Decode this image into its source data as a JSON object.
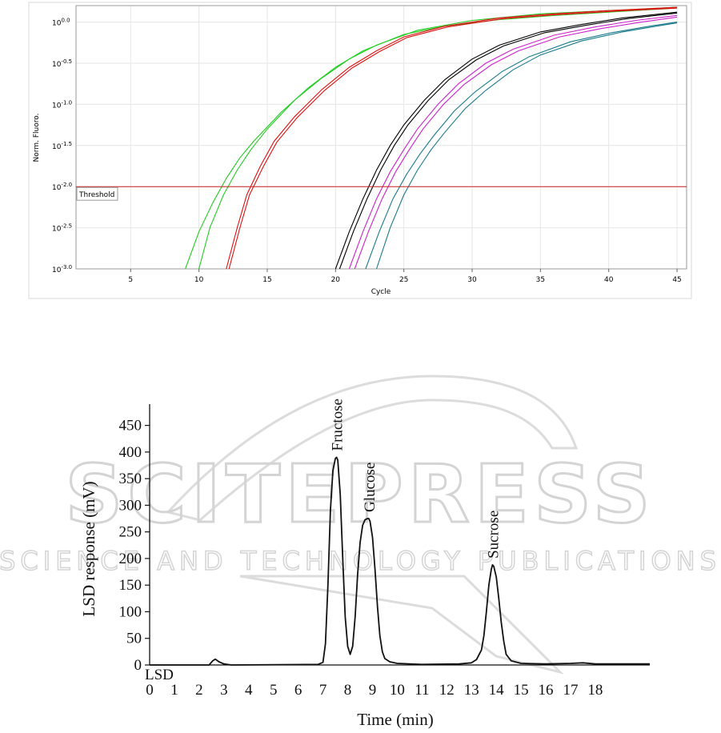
{
  "chart_data": [
    {
      "type": "line",
      "ylabel": "Norm. Fluoro.",
      "xlabel": "Cycle",
      "y_scale": "log",
      "x_ticks": [
        5,
        10,
        15,
        20,
        25,
        30,
        35,
        40,
        45
      ],
      "y_ticks": [
        "0.0",
        "-0.5",
        "-1.0",
        "-1.5",
        "-2.0",
        "-2.5",
        "-3.0"
      ],
      "y_tick_base": "10",
      "xlim": [
        1,
        45.7
      ],
      "ylim_log10": [
        -3.0,
        0.2
      ],
      "grid": true,
      "threshold": {
        "label": "Threshold",
        "value_log10": -2.0,
        "color": "#cc2222"
      },
      "series": [
        {
          "color": "#22cc22",
          "x": [
            9.0,
            10.0,
            11.0,
            12.0,
            13.0,
            14.0,
            16.0,
            18.0,
            20.0,
            22.0,
            25.0,
            28.0,
            32.0,
            36.0,
            40.0,
            45.0
          ],
          "y_log10": [
            -3.0,
            -2.55,
            -2.2,
            -1.9,
            -1.65,
            -1.45,
            -1.1,
            -0.8,
            -0.55,
            -0.35,
            -0.15,
            -0.05,
            0.03,
            0.08,
            0.12,
            0.17
          ]
        },
        {
          "color": "#22cc22",
          "x": [
            10.0,
            10.8,
            11.8,
            12.8,
            13.8,
            15.0,
            17.0,
            19.0,
            21.0,
            23.0,
            26.0,
            30.0,
            35.0,
            40.0,
            45.0
          ],
          "y_log10": [
            -3.0,
            -2.5,
            -2.1,
            -1.8,
            -1.55,
            -1.3,
            -0.95,
            -0.68,
            -0.45,
            -0.28,
            -0.1,
            0.02,
            0.1,
            0.14,
            0.18
          ]
        },
        {
          "color": "#dd1111",
          "x": [
            12.0,
            12.8,
            13.5,
            14.5,
            15.5,
            17.0,
            19.0,
            21.0,
            23.0,
            25.0,
            28.0,
            32.0,
            36.0,
            40.0,
            45.0
          ],
          "y_log10": [
            -3.0,
            -2.5,
            -2.1,
            -1.75,
            -1.45,
            -1.15,
            -0.82,
            -0.55,
            -0.35,
            -0.18,
            -0.05,
            0.05,
            0.1,
            0.14,
            0.18
          ]
        },
        {
          "color": "#dd1111",
          "x": [
            12.2,
            13.0,
            13.7,
            14.7,
            15.7,
            17.2,
            19.2,
            21.2,
            23.2,
            25.2,
            28.2,
            32.2,
            36.2,
            40.2,
            45.0
          ],
          "y_log10": [
            -3.0,
            -2.5,
            -2.1,
            -1.76,
            -1.46,
            -1.16,
            -0.83,
            -0.56,
            -0.36,
            -0.19,
            -0.06,
            0.04,
            0.09,
            0.13,
            0.17
          ]
        },
        {
          "color": "#000000",
          "x": [
            20.0,
            21.0,
            22.0,
            23.0,
            24.0,
            25.0,
            26.5,
            28.0,
            30.0,
            32.0,
            35.0,
            38.0,
            41.0,
            45.0
          ],
          "y_log10": [
            -3.0,
            -2.55,
            -2.15,
            -1.8,
            -1.5,
            -1.25,
            -0.95,
            -0.7,
            -0.45,
            -0.28,
            -0.12,
            -0.03,
            0.05,
            0.12
          ]
        },
        {
          "color": "#000000",
          "x": [
            20.3,
            21.3,
            22.3,
            23.3,
            24.3,
            25.3,
            26.8,
            28.3,
            30.3,
            32.3,
            35.3,
            38.3,
            41.3,
            45.0
          ],
          "y_log10": [
            -3.0,
            -2.55,
            -2.15,
            -1.8,
            -1.5,
            -1.25,
            -0.95,
            -0.7,
            -0.46,
            -0.29,
            -0.13,
            -0.04,
            0.04,
            0.11
          ]
        },
        {
          "color": "#cc22cc",
          "x": [
            21.0,
            22.0,
            23.0,
            24.0,
            25.0,
            26.0,
            27.5,
            29.0,
            31.0,
            33.0,
            36.0,
            39.0,
            42.0,
            45.0
          ],
          "y_log10": [
            -3.0,
            -2.55,
            -2.15,
            -1.82,
            -1.55,
            -1.3,
            -1.0,
            -0.75,
            -0.5,
            -0.33,
            -0.16,
            -0.06,
            0.02,
            0.08
          ]
        },
        {
          "color": "#cc22cc",
          "x": [
            21.4,
            22.4,
            23.4,
            24.4,
            25.4,
            26.4,
            27.9,
            29.4,
            31.4,
            33.4,
            36.4,
            39.4,
            42.4,
            45.0
          ],
          "y_log10": [
            -3.0,
            -2.55,
            -2.15,
            -1.82,
            -1.55,
            -1.3,
            -1.0,
            -0.76,
            -0.52,
            -0.35,
            -0.18,
            -0.08,
            0.0,
            0.06
          ]
        },
        {
          "color": "#1a7a8a",
          "x": [
            22.2,
            23.2,
            24.2,
            25.2,
            26.2,
            27.2,
            28.7,
            30.2,
            32.2,
            34.2,
            37.2,
            40.2,
            43.0,
            45.0
          ],
          "y_log10": [
            -3.0,
            -2.55,
            -2.15,
            -1.85,
            -1.6,
            -1.38,
            -1.08,
            -0.85,
            -0.6,
            -0.42,
            -0.24,
            -0.13,
            -0.05,
            0.0
          ]
        },
        {
          "color": "#1a7a8a",
          "x": [
            23.0,
            24.0,
            25.0,
            26.0,
            27.0,
            28.0,
            29.5,
            31.0,
            33.0,
            35.0,
            38.0,
            41.0,
            43.5,
            45.0
          ],
          "y_log10": [
            -3.0,
            -2.5,
            -2.1,
            -1.8,
            -1.55,
            -1.34,
            -1.05,
            -0.83,
            -0.58,
            -0.4,
            -0.23,
            -0.12,
            -0.05,
            -0.01
          ]
        }
      ]
    },
    {
      "type": "line",
      "xlabel": "Time (min)",
      "ylabel": "LSD response (mV)",
      "x_ticks": [
        0,
        1,
        2,
        3,
        4,
        5,
        6,
        7,
        8,
        9,
        10,
        11,
        12,
        13,
        14,
        15,
        16,
        17,
        18
      ],
      "y_ticks": [
        0,
        50,
        100,
        150,
        200,
        250,
        300,
        350,
        400,
        450
      ],
      "xlim": [
        0,
        20.2
      ],
      "ylim": [
        0,
        490
      ],
      "grid": false,
      "trace_label": "LSD",
      "peaks": [
        {
          "label": "Fructose",
          "x": 7.55,
          "y": 390
        },
        {
          "label": "Glucose",
          "x": 8.85,
          "y": 275
        },
        {
          "label": "Sucrose",
          "x": 13.85,
          "y": 188
        }
      ],
      "series": [
        {
          "color": "#111111",
          "x": [
            0.0,
            2.4,
            2.55,
            2.65,
            2.8,
            3.0,
            3.3,
            6.8,
            7.0,
            7.1,
            7.2,
            7.3,
            7.4,
            7.5,
            7.55,
            7.6,
            7.7,
            7.8,
            7.9,
            8.0,
            8.1,
            8.2,
            8.3,
            8.4,
            8.5,
            8.6,
            8.7,
            8.8,
            8.85,
            8.9,
            9.0,
            9.1,
            9.2,
            9.3,
            9.4,
            9.5,
            9.7,
            10.0,
            11.0,
            12.5,
            13.0,
            13.2,
            13.4,
            13.5,
            13.6,
            13.7,
            13.8,
            13.85,
            13.9,
            14.0,
            14.1,
            14.2,
            14.3,
            14.4,
            14.6,
            15.0,
            16.0,
            17.0,
            17.5,
            18.0,
            19.0,
            20.2
          ],
          "y": [
            0,
            0,
            8,
            11,
            6,
            2,
            0,
            1,
            5,
            40,
            150,
            290,
            365,
            388,
            390,
            385,
            320,
            200,
            90,
            35,
            20,
            35,
            90,
            170,
            230,
            262,
            273,
            275,
            275,
            270,
            240,
            180,
            110,
            55,
            25,
            12,
            6,
            3,
            1,
            2,
            4,
            10,
            28,
            55,
            100,
            150,
            180,
            188,
            185,
            165,
            125,
            80,
            45,
            20,
            8,
            3,
            2,
            3,
            4,
            2,
            2,
            2
          ]
        }
      ]
    }
  ],
  "watermark": {
    "line1": "SCITEPRESS",
    "line2": "SCIENCE AND TECHNOLOGY PUBLICATIONS"
  }
}
